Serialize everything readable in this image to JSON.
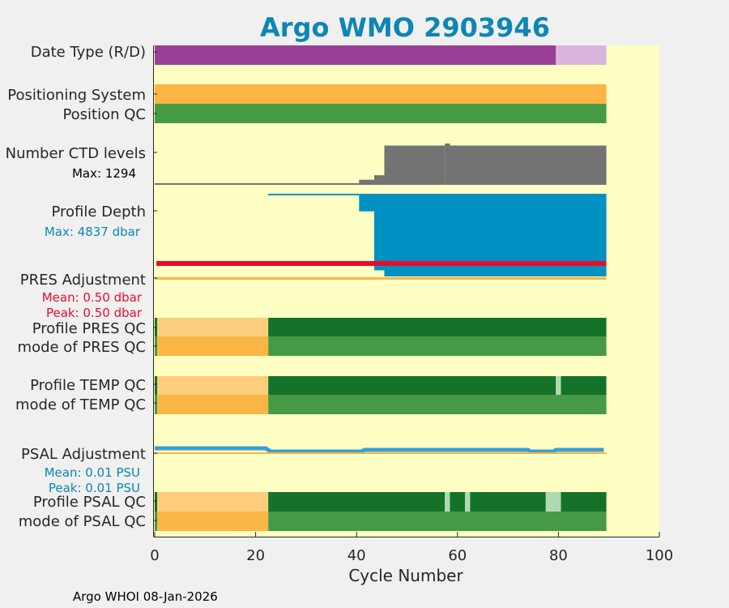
{
  "chart_data": {
    "type": "bar",
    "title": "Argo WMO 2903946",
    "xlabel": "Cycle Number",
    "xlim": [
      0,
      100
    ],
    "x_ticks": [
      "0",
      "20",
      "40",
      "60",
      "80",
      "100"
    ],
    "last_cycle": 89,
    "footer": "Argo WHOI 08-Jan-2026",
    "colors": {
      "background": "#ffffc4",
      "figure": "#f0f0f0",
      "title": "#0d86b5",
      "realtime": "#9a3e98",
      "delayed": "#d9b5db",
      "orange": "#fbb544",
      "light_orange": "#fccd7c",
      "dark_green": "#157229",
      "green": "#469a45",
      "pale_green": "#b1d9b1",
      "gray": "#737373",
      "blue": "#0091c2",
      "red": "#e70d2e",
      "psal_line": "#3b9fd4"
    },
    "row_labels": {
      "date_type": "Date Type (R/D)",
      "positioning_system": "Positioning System",
      "position_qc": "Position QC",
      "ctd_levels": "Number CTD levels",
      "ctd_max": "Max: 1294",
      "profile_depth": "Profile Depth",
      "depth_max": "Max: 4837 dbar",
      "pres_adjustment": "PRES Adjustment",
      "pres_mean": "Mean: 0.50 dbar",
      "pres_peak": "Peak: 0.50 dbar",
      "profile_pres_qc": "Profile PRES QC",
      "mode_pres_qc": "mode of PRES QC",
      "profile_temp_qc": "Profile TEMP QC",
      "mode_temp_qc": "mode of TEMP QC",
      "psal_adjustment": "PSAL Adjustment",
      "psal_mean": "Mean: 0.01 PSU",
      "psal_peak": "Peak: 0.01 PSU",
      "profile_psal_qc": "Profile PSAL QC",
      "mode_psal_qc": "mode of PSAL QC"
    },
    "date_type": [
      {
        "from": 0,
        "to": 80,
        "mode": "R"
      },
      {
        "from": 80,
        "to": 89,
        "mode": "D"
      }
    ],
    "ctd_levels": {
      "max": 1294,
      "segments": [
        {
          "from": 0,
          "to": 41,
          "value": 40
        },
        {
          "from": 41,
          "to": 44,
          "value": 160
        },
        {
          "from": 44,
          "to": 46,
          "value": 300
        },
        {
          "from": 46,
          "to": 58,
          "value": 1230
        },
        {
          "from": 58,
          "to": 59,
          "value": 1294
        },
        {
          "from": 59,
          "to": 89,
          "value": 1230
        }
      ]
    },
    "profile_depth": {
      "max": 4837,
      "segments": [
        {
          "from": 0,
          "to": 0.5,
          "value": 70
        },
        {
          "from": 23,
          "to": 41,
          "value": 70
        },
        {
          "from": 41,
          "to": 44,
          "value": 1030
        },
        {
          "from": 44,
          "to": 46,
          "value": 4480
        },
        {
          "from": 46,
          "to": 89,
          "value": 4837
        }
      ]
    },
    "pres_adjustment_value": 0.5,
    "psal_adjustment": [
      {
        "cycle": 0,
        "value": 0.016
      },
      {
        "cycle": 22,
        "value": 0.016
      },
      {
        "cycle": 23,
        "value": 0.0
      },
      {
        "cycle": 41,
        "value": 0.0
      },
      {
        "cycle": 41.5,
        "value": 0.008
      },
      {
        "cycle": 74,
        "value": 0.008
      },
      {
        "cycle": 74.5,
        "value": 0.0
      },
      {
        "cycle": 79,
        "value": 0.0
      },
      {
        "cycle": 79.5,
        "value": 0.008
      },
      {
        "cycle": 89,
        "value": 0.008
      }
    ],
    "qc_rows": {
      "profile_pres": [
        {
          "from": 0,
          "to": 1,
          "flag": "A"
        },
        {
          "from": 1,
          "to": 23,
          "flag": "F"
        },
        {
          "from": 23,
          "to": 89,
          "flag": "A"
        }
      ],
      "mode_pres": [
        {
          "from": 0,
          "to": 1,
          "flag": "1"
        },
        {
          "from": 1,
          "to": 23,
          "flag": "4"
        },
        {
          "from": 23,
          "to": 89,
          "flag": "1"
        }
      ],
      "profile_temp": [
        {
          "from": 0,
          "to": 1,
          "flag": "A"
        },
        {
          "from": 1,
          "to": 23,
          "flag": "F"
        },
        {
          "from": 23,
          "to": 80,
          "flag": "A"
        },
        {
          "from": 80,
          "to": 81,
          "flag": "B"
        },
        {
          "from": 81,
          "to": 89,
          "flag": "A"
        }
      ],
      "mode_temp": [
        {
          "from": 0,
          "to": 1,
          "flag": "1"
        },
        {
          "from": 1,
          "to": 23,
          "flag": "4"
        },
        {
          "from": 23,
          "to": 89,
          "flag": "1"
        }
      ],
      "profile_psal": [
        {
          "from": 0,
          "to": 1,
          "flag": "A"
        },
        {
          "from": 1,
          "to": 23,
          "flag": "F"
        },
        {
          "from": 23,
          "to": 58,
          "flag": "A"
        },
        {
          "from": 58,
          "to": 59,
          "flag": "B"
        },
        {
          "from": 59,
          "to": 62,
          "flag": "A"
        },
        {
          "from": 62,
          "to": 63,
          "flag": "B"
        },
        {
          "from": 63,
          "to": 78,
          "flag": "A"
        },
        {
          "from": 78,
          "to": 81,
          "flag": "B"
        },
        {
          "from": 81,
          "to": 89,
          "flag": "A"
        }
      ],
      "mode_psal": [
        {
          "from": 0,
          "to": 1,
          "flag": "1"
        },
        {
          "from": 1,
          "to": 23,
          "flag": "4"
        },
        {
          "from": 23,
          "to": 89,
          "flag": "1"
        }
      ]
    },
    "flag_colors": {
      "A": "#157229",
      "B": "#b1d9b1",
      "F": "#fccd7c",
      "1": "#469a45",
      "4": "#fbb544"
    }
  }
}
